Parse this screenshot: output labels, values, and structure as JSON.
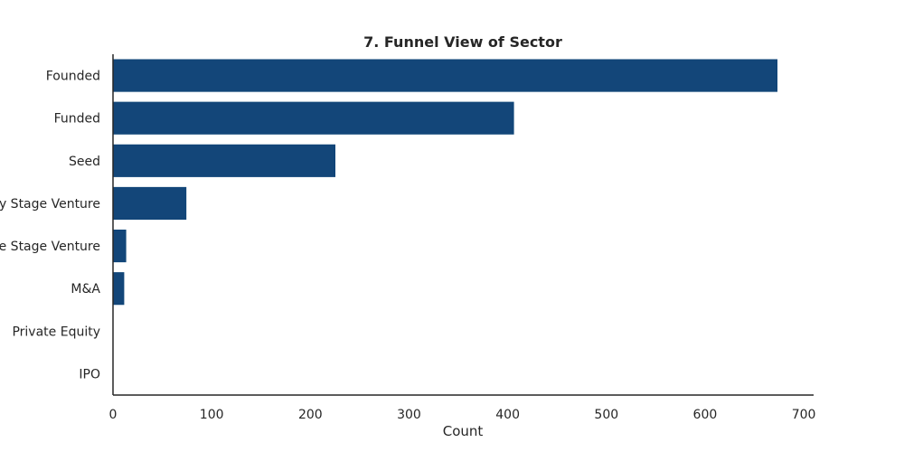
{
  "chart_data": {
    "type": "bar",
    "orientation": "horizontal",
    "title": "7. Funnel View of Sector",
    "xlabel": "Count",
    "ylabel": "",
    "categories": [
      "Founded",
      "Funded",
      "Seed",
      "Early Stage Venture",
      "Late Stage Venture",
      "M&A",
      "Private Equity",
      "IPO"
    ],
    "values": [
      673,
      406,
      225,
      74,
      13,
      11,
      0,
      0
    ],
    "xlim": [
      0,
      710
    ],
    "xticks": [
      0,
      100,
      200,
      300,
      400,
      500,
      600,
      700
    ],
    "grid": false,
    "legend": "none",
    "bar_color": "#134679"
  }
}
